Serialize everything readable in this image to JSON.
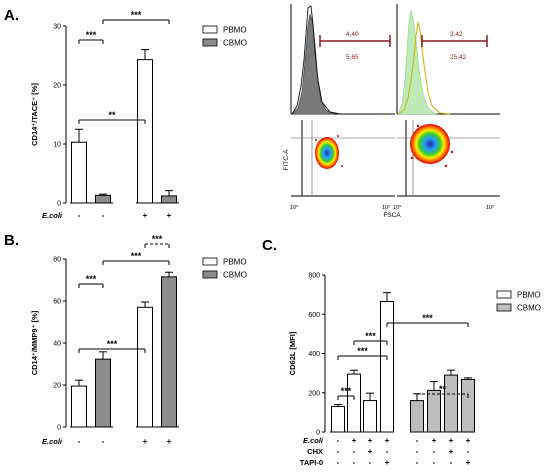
{
  "panels": {
    "A": {
      "letter": "A.",
      "chart_data": {
        "type": "bar",
        "ylabel": "CD14⁺/TACE⁺ [%]",
        "ylim": [
          0,
          30
        ],
        "yticks": [
          0,
          10,
          20,
          30
        ],
        "row_labels": [
          "E.coli"
        ],
        "groups": [
          [
            "-",
            "+"
          ],
          [
            "-",
            "+"
          ]
        ],
        "series": [
          {
            "name": "PBMO",
            "values": [
              10.3,
              24.3
            ],
            "errors": [
              2.2,
              1.7
            ]
          },
          {
            "name": "CBMO",
            "values": [
              1.3,
              1.2
            ],
            "errors": [
              0.2,
              0.9
            ]
          }
        ],
        "legend": "top-right",
        "brackets": [
          {
            "from": [
              0,
              0
            ],
            "to": [
              0,
              1
            ],
            "label": "**",
            "dashed": false
          },
          {
            "from": [
              0,
              0
            ],
            "to": [
              1,
              0
            ],
            "label": "***",
            "dashed": false
          },
          {
            "from": [
              1,
              0
            ],
            "to": [
              1,
              1
            ],
            "label": "***",
            "dashed": false
          }
        ]
      }
    },
    "B": {
      "letter": "B.",
      "chart_data": {
        "type": "bar",
        "ylabel": "CD14⁺/MMP9⁺ [%]",
        "ylim": [
          0,
          80
        ],
        "yticks": [
          0,
          20,
          40,
          60,
          80
        ],
        "row_labels": [
          "E.coli"
        ],
        "groups": [
          [
            "-",
            "+"
          ],
          [
            "-",
            "+"
          ]
        ],
        "series": [
          {
            "name": "PBMO",
            "values": [
              19.5,
              57.0
            ],
            "errors": [
              2.8,
              2.5
            ]
          },
          {
            "name": "CBMO",
            "values": [
              32.3,
              71.5
            ],
            "errors": [
              3.5,
              2.2
            ]
          }
        ],
        "legend": "top-right",
        "brackets": [
          {
            "from": [
              0,
              0
            ],
            "to": [
              0,
              1
            ],
            "label": "***",
            "dashed": false
          },
          {
            "from": [
              0,
              0
            ],
            "to": [
              1,
              0
            ],
            "label": "***",
            "dashed": false
          },
          {
            "from": [
              1,
              0
            ],
            "to": [
              1,
              1
            ],
            "label": "***",
            "dashed": false
          },
          {
            "from": [
              0,
              1
            ],
            "to": [
              1,
              1
            ],
            "label": "***",
            "dashed": true
          }
        ]
      }
    },
    "C": {
      "letter": "C.",
      "chart_data": {
        "type": "bar",
        "ylabel": "CD62L [MFI]",
        "ylim": [
          0,
          800
        ],
        "yticks": [
          0,
          200,
          400,
          600,
          800
        ],
        "row_labels": [
          "E.coli",
          "CHX",
          "TAPI-0"
        ],
        "groups": [
          [
            [
              "-",
              "-",
              "-"
            ],
            [
              "+",
              "-",
              "-"
            ],
            [
              "+",
              "+",
              "-"
            ],
            [
              "+",
              "-",
              "+"
            ]
          ],
          [
            [
              "-",
              "-",
              "-"
            ],
            [
              "+",
              "-",
              "-"
            ],
            [
              "+",
              "+",
              "-"
            ],
            [
              "+",
              "-",
              "+"
            ]
          ]
        ],
        "series": [
          {
            "name": "PBMO",
            "values": [
              130,
              295,
              160,
              665
            ],
            "errors": [
              10,
              20,
              38,
              45
            ]
          },
          {
            "name": "CBMO",
            "values": [
              160,
              212,
              290,
              268
            ],
            "errors": [
              35,
              45,
              25,
              8
            ]
          }
        ],
        "legend": "right",
        "brackets": [
          {
            "from": [
              0,
              0
            ],
            "to": [
              0,
              1
            ],
            "label": "***",
            "dashed": false
          },
          {
            "from": [
              0,
              0
            ],
            "to": [
              0,
              3
            ],
            "label": "***",
            "dashed": false
          },
          {
            "from": [
              0,
              1
            ],
            "to": [
              0,
              3
            ],
            "label": "***",
            "dashed": false
          },
          {
            "from": [
              0,
              3
            ],
            "to": [
              1,
              3
            ],
            "label": "***",
            "dashed": false
          },
          {
            "from": [
              1,
              0
            ],
            "to": [
              1,
              3
            ],
            "label": "**",
            "dashed": true
          }
        ]
      }
    },
    "flow": {
      "histograms": [
        {
          "upper": "4,40",
          "lower": "5,65"
        },
        {
          "upper": "3,42",
          "lower": "25,42"
        }
      ],
      "ylabel": "FITC-A",
      "xlabel": "FSCA",
      "tick_labels": [
        "10⁰",
        "10³",
        "10⁰",
        "10³"
      ],
      "colors": {
        "gate": "#8b1a1a",
        "hist_fill": "#777777",
        "hist_green": "#b8e6b0",
        "hist_yellow": "#c8b400"
      }
    }
  },
  "colors": {
    "pbmo": "#ffffff",
    "cbmo_a_b": "#8c8c8c",
    "cbmo_c": "#bdbdbd",
    "axis": "#000000"
  }
}
